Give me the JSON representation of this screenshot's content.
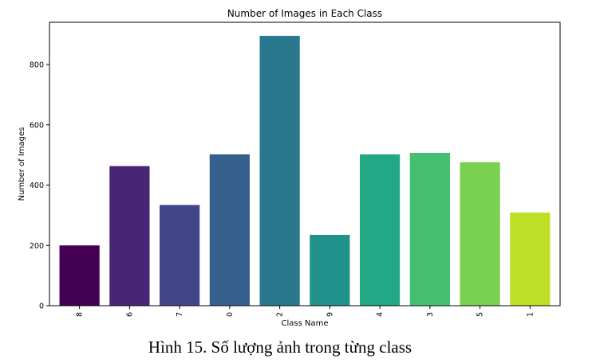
{
  "caption": "Hình 15. Số lượng ảnh trong từng class",
  "chart_data": {
    "type": "bar",
    "title": "Number of Images in Each Class",
    "xlabel": "Class Name",
    "ylabel": "Number of Images",
    "categories": [
      "8",
      "6",
      "7",
      "0",
      "2",
      "9",
      "4",
      "3",
      "5",
      "1"
    ],
    "values": [
      200,
      463,
      334,
      502,
      895,
      235,
      502,
      507,
      476,
      309
    ],
    "colors": [
      "#440154",
      "#482475",
      "#414487",
      "#355f8d",
      "#2a788e",
      "#21918c",
      "#22a884",
      "#44bf70",
      "#7ad151",
      "#bddf26"
    ],
    "ylim": [
      0,
      940
    ],
    "yticks": [
      0,
      200,
      400,
      600,
      800
    ],
    "grid": false,
    "legend": "none"
  }
}
